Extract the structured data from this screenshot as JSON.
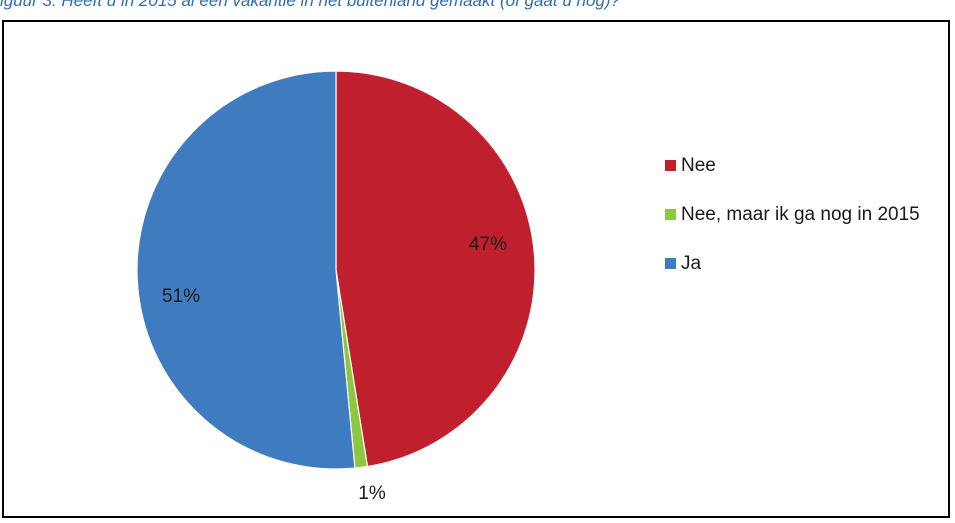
{
  "caption": "iguur 3: Heeft u in 2015 al een vakantie in het buitenland gemaakt (of gaat u nog)?",
  "chart_data": {
    "type": "pie",
    "title": "",
    "slices": [
      {
        "label": "Nee",
        "value": 47,
        "display": "47%",
        "color": "#c0202e"
      },
      {
        "label": "Nee, maar ik ga nog in 2015",
        "value": 1,
        "display": "1%",
        "color": "#8dc63f"
      },
      {
        "label": "Ja",
        "value": 51,
        "display": "51%",
        "color": "#3f7cbf"
      }
    ],
    "legend_position": "right",
    "start_angle_deg": 0,
    "direction": "clockwise"
  }
}
